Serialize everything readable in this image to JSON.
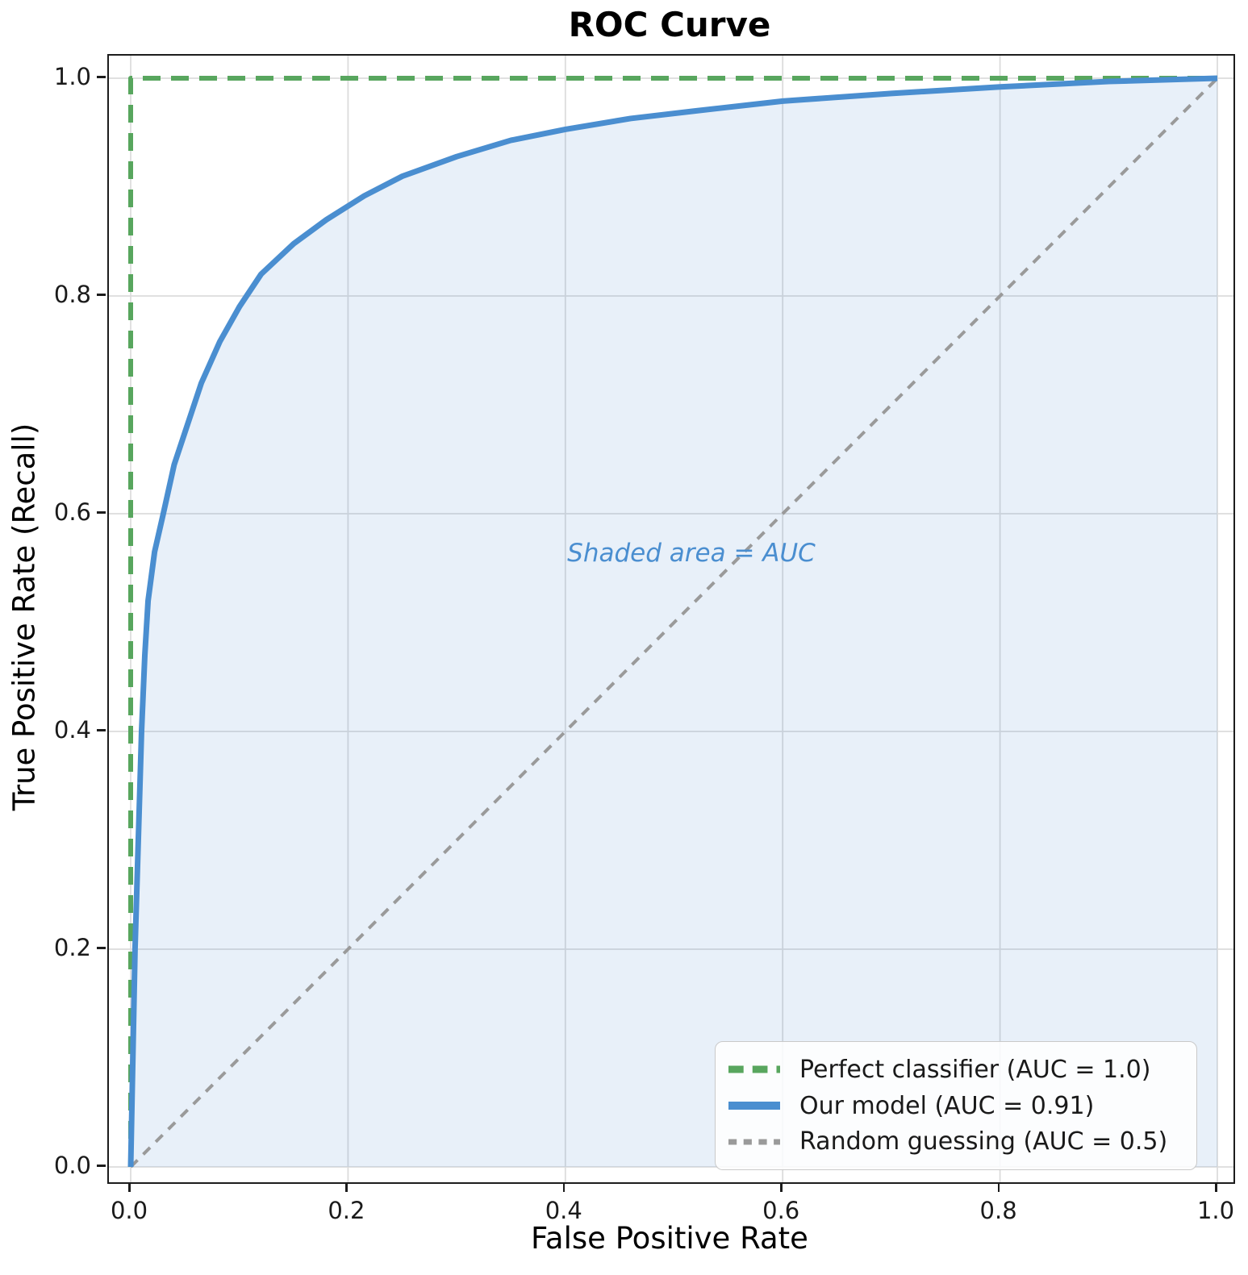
{
  "chart_data": {
    "type": "line",
    "title": "ROC Curve",
    "xlabel": "False Positive Rate",
    "ylabel": "True Positive Rate (Recall)",
    "xlim": [
      -0.02,
      1.02
    ],
    "ylim": [
      -0.02,
      1.02
    ],
    "grid": true,
    "legend_position": "lower right",
    "xticks": [
      0.0,
      0.2,
      0.4,
      0.6,
      0.8,
      1.0
    ],
    "yticks": [
      0.0,
      0.2,
      0.4,
      0.6,
      0.8,
      1.0
    ],
    "xtick_labels": [
      "0.0",
      "0.2",
      "0.4",
      "0.6",
      "0.8",
      "1.0"
    ],
    "ytick_labels": [
      "0.0",
      "0.2",
      "0.4",
      "0.6",
      "0.8",
      "1.0"
    ],
    "annotation": {
      "text": "Shaded area = AUC",
      "x": 0.42,
      "y": 0.61,
      "color": "#4a8ed0"
    },
    "colors": {
      "model_blue": "#4a8ed0",
      "perfect_green": "#58a65e",
      "random_gray": "#9a9a9a",
      "fill_blue": "rgba(74,142,208,0.13)",
      "gridline": "#dcdcdc",
      "spine": "#1c1c1c"
    },
    "series": [
      {
        "name": "Perfect classifier (AUC = 1.0)",
        "auc": 1.0,
        "color": "#58a65e",
        "dash": [
          22,
          13
        ],
        "width": 6,
        "fill": false,
        "points": [
          [
            0,
            0
          ],
          [
            0,
            1
          ],
          [
            1,
            1
          ]
        ]
      },
      {
        "name": "Our model (AUC = 0.91)",
        "auc": 0.91,
        "color": "#4a8ed0",
        "dash": null,
        "width": 7,
        "fill": true,
        "points": [
          [
            0.0,
            0.0
          ],
          [
            0.004,
            0.2
          ],
          [
            0.007,
            0.3
          ],
          [
            0.01,
            0.4
          ],
          [
            0.013,
            0.47
          ],
          [
            0.016,
            0.52
          ],
          [
            0.022,
            0.565
          ],
          [
            0.03,
            0.6
          ],
          [
            0.04,
            0.645
          ],
          [
            0.05,
            0.675
          ],
          [
            0.065,
            0.72
          ],
          [
            0.082,
            0.758
          ],
          [
            0.1,
            0.79
          ],
          [
            0.12,
            0.82
          ],
          [
            0.15,
            0.848
          ],
          [
            0.18,
            0.87
          ],
          [
            0.215,
            0.892
          ],
          [
            0.25,
            0.91
          ],
          [
            0.3,
            0.928
          ],
          [
            0.35,
            0.943
          ],
          [
            0.4,
            0.953
          ],
          [
            0.46,
            0.963
          ],
          [
            0.52,
            0.97
          ],
          [
            0.6,
            0.979
          ],
          [
            0.7,
            0.986
          ],
          [
            0.8,
            0.992
          ],
          [
            0.9,
            0.997
          ],
          [
            1.0,
            1.0
          ]
        ]
      },
      {
        "name": "Random guessing (AUC = 0.5)",
        "auc": 0.5,
        "color": "#9a9a9a",
        "dash": [
          12,
          10
        ],
        "width": 4,
        "fill": false,
        "points": [
          [
            0,
            0
          ],
          [
            1,
            1
          ]
        ]
      }
    ]
  }
}
